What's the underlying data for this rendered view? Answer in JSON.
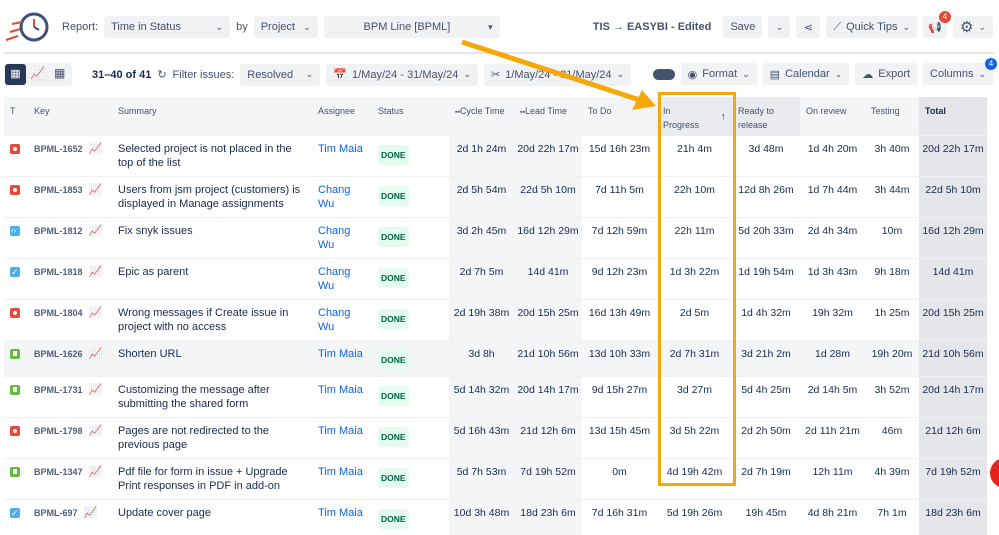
{
  "header": {
    "report_label": "Report:",
    "report_value": "Time in Status",
    "by_label": "by",
    "group_value": "Project",
    "project_value": "BPM Line [BPML]",
    "config_name": "TIS → EASYBI - Edited",
    "save_label": "Save",
    "quick_tips_label": "Quick Tips",
    "notification_count": "4"
  },
  "toolbar": {
    "pagination": "31–40 of 41",
    "filter_label": "Filter issues:",
    "filter_value": "Resolved",
    "date_range": "1/May/24 - 31/May/24",
    "date_range2": "1/May/24 - 31/May/24",
    "format_label": "Format",
    "calendar_label": "Calendar",
    "export_label": "Export",
    "columns_label": "Columns",
    "columns_badge": "4"
  },
  "columns": [
    "T",
    "Key",
    "Summary",
    "Assignee",
    "Status",
    "Cycle Time",
    "Lead Time",
    "To Do",
    "In Progress",
    "Ready to release",
    "On review",
    "Testing",
    "Total"
  ],
  "sorted_column": "In Progress",
  "highlight_color": "#f5a80a",
  "rows": [
    {
      "type": "bug",
      "key": "BPML-1652",
      "summary": "Selected project is not placed in the top of the list",
      "assignee": "Tim Maia",
      "status": "DONE",
      "vals": [
        "2d 1h 24m",
        "20d 22h 17m",
        "15d 16h 23m",
        "21h 4m",
        "3d 48m",
        "1d 4h 20m",
        "3h 40m",
        "20d 22h 17m"
      ]
    },
    {
      "type": "bug",
      "key": "BPML-1853",
      "summary": "Users from jsm project (customers) is displayed in Manage assignments",
      "assignee": "Chang Wu",
      "status": "DONE",
      "vals": [
        "2d 5h 54m",
        "22d 5h 10m",
        "7d 11h 5m",
        "22h 10m",
        "12d 8h 26m",
        "1d 7h 44m",
        "3h 44m",
        "22d 5h 10m"
      ]
    },
    {
      "type": "sub",
      "key": "BPML-1812",
      "summary": "Fix snyk issues",
      "assignee": "Chang Wu",
      "status": "DONE",
      "vals": [
        "3d 2h 45m",
        "16d 12h 29m",
        "7d 12h 59m",
        "22h 11m",
        "5d 20h 33m",
        "2d 4h 34m",
        "10m",
        "16d 12h 29m"
      ]
    },
    {
      "type": "task",
      "key": "BPML-1818",
      "summary": "Epic as parent",
      "assignee": "Chang Wu",
      "status": "DONE",
      "vals": [
        "2d 7h 5m",
        "14d 41m",
        "9d 12h 23m",
        "1d 3h 22m",
        "1d 19h 54m",
        "1d 3h 43m",
        "9h 18m",
        "14d 41m"
      ]
    },
    {
      "type": "bug",
      "key": "BPML-1804",
      "summary": "Wrong messages if Create issue in project with no access",
      "assignee": "Chang Wu",
      "status": "DONE",
      "vals": [
        "2d 19h 38m",
        "20d 15h 25m",
        "16d 13h 49m",
        "2d 5m",
        "1d 4h 32m",
        "19h 32m",
        "1h 25m",
        "20d 15h 25m"
      ]
    },
    {
      "type": "story",
      "key": "BPML-1626",
      "summary": "Shorten URL",
      "assignee": "Tim Maia",
      "status": "DONE",
      "vals": [
        "3d 8h",
        "21d 10h 56m",
        "13d 10h 33m",
        "2d 7h 31m",
        "3d 21h 2m",
        "1d 28m",
        "19h 20m",
        "21d 10h 56m"
      ]
    },
    {
      "type": "story",
      "key": "BPML-1731",
      "summary": "Customizing the message after submitting the shared form",
      "assignee": "Tim Maia",
      "status": "DONE",
      "vals": [
        "5d 14h 32m",
        "20d 14h 17m",
        "9d 15h 27m",
        "3d 27m",
        "5d 4h 25m",
        "2d 14h 5m",
        "3h 52m",
        "20d 14h 17m"
      ]
    },
    {
      "type": "bug",
      "key": "BPML-1798",
      "summary": "Pages are not redirected to the previous page",
      "assignee": "Tim Maia",
      "status": "DONE",
      "vals": [
        "5d 16h 43m",
        "21d 12h 6m",
        "13d 15h 45m",
        "3d 5h 22m",
        "2d 2h 50m",
        "2d 11h 21m",
        "46m",
        "21d 12h 6m"
      ]
    },
    {
      "type": "story",
      "key": "BPML-1347",
      "summary": "Pdf file for form in issue + Upgrade Print responses in PDF in add-on",
      "assignee": "Tim Maia",
      "status": "DONE",
      "vals": [
        "5d 7h 53m",
        "7d 19h 52m",
        "0m",
        "4d 19h 42m",
        "2d 7h 19m",
        "12h 11m",
        "4h 39m",
        "7d 19h 52m"
      ]
    },
    {
      "type": "task",
      "key": "BPML-697",
      "summary": "Update cover page",
      "assignee": "Tim Maia",
      "status": "DONE",
      "vals": [
        "10d 3h 48m",
        "18d 23h 6m",
        "7d 16h 31m",
        "5d 19h 26m",
        "19h 45m",
        "4d 8h 21m",
        "7h 1m",
        "18d 23h 6m"
      ]
    }
  ]
}
